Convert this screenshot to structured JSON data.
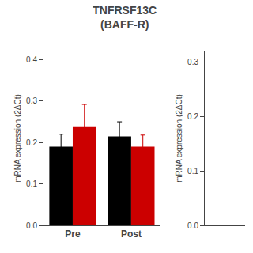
{
  "chart_data": [
    {
      "type": "bar",
      "title": "TNFRSF13C",
      "subtitle": "(BAFF-R)",
      "ylabel": "mRNA expression (2ΔCt)",
      "categories": [
        "Pre",
        "Post"
      ],
      "series": [
        {
          "color": "#000000",
          "values": [
            0.19,
            0.215
          ],
          "errors": [
            0.03,
            0.035
          ]
        },
        {
          "color": "#cc0000",
          "values": [
            0.237,
            0.19
          ],
          "errors": [
            0.055,
            0.028
          ]
        }
      ],
      "ylim": [
        0.0,
        0.42
      ],
      "yticks": [
        {
          "value": 0.0,
          "label": "0.0"
        },
        0.1,
        0.2,
        0.3,
        0.4
      ],
      "grid": false
    },
    {
      "type": "bar",
      "ylabel": "mRNA expression (2ΔCt)",
      "categories": [],
      "series": [],
      "ylim": [
        0.0,
        0.32
      ],
      "yticks": [
        {
          "value": 0.0,
          "label": "0.0"
        },
        0.1,
        0.2,
        0.3
      ],
      "tick_labels": "y",
      "grid": false
    }
  ]
}
